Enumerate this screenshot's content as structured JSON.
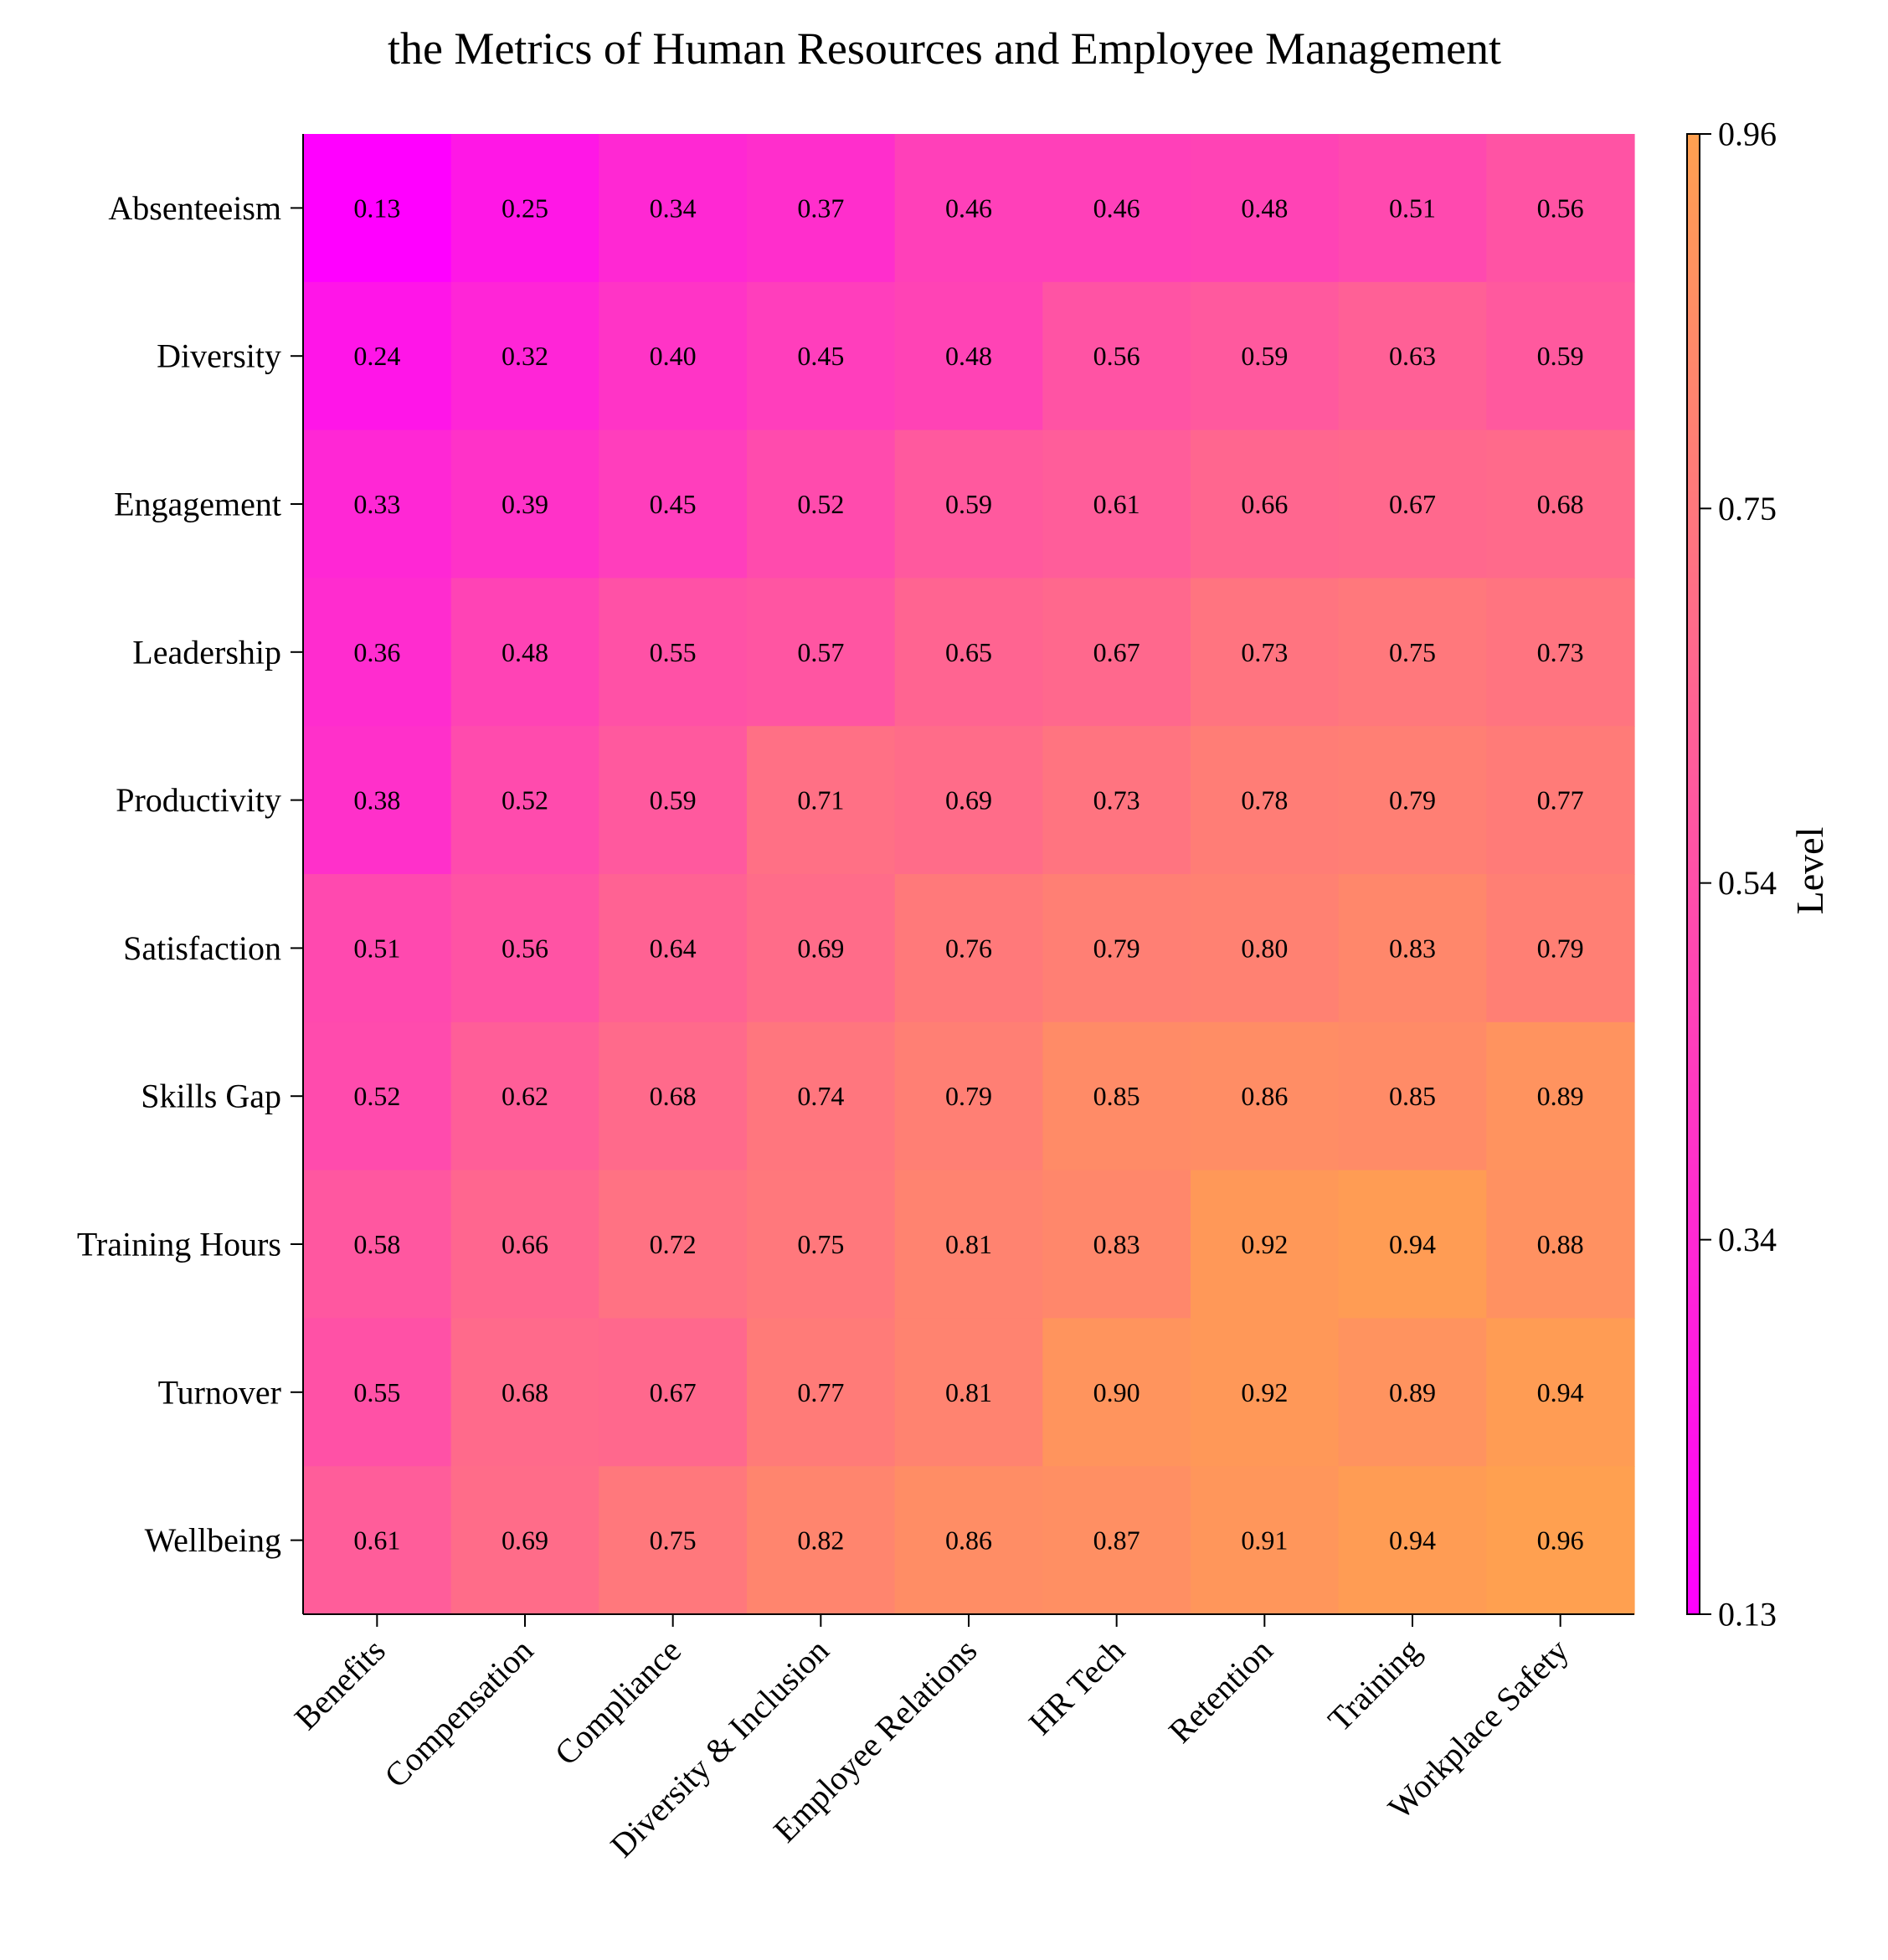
{
  "chart_data": {
    "type": "heatmap",
    "title": "the Metrics of Human Resources and Employee Management",
    "xlabel": "",
    "ylabel": "",
    "x_categories": [
      "Benefits",
      "Compensation",
      "Compliance",
      "Diversity & Inclusion",
      "Employee Relations",
      "HR Tech",
      "Retention",
      "Training",
      "Workplace Safety"
    ],
    "y_categories": [
      "Absenteeism",
      "Diversity",
      "Engagement",
      "Leadership",
      "Productivity",
      "Satisfaction",
      "Skills Gap",
      "Training Hours",
      "Turnover",
      "Wellbeing"
    ],
    "values": [
      [
        0.13,
        0.25,
        0.34,
        0.37,
        0.46,
        0.46,
        0.48,
        0.51,
        0.56
      ],
      [
        0.24,
        0.32,
        0.4,
        0.45,
        0.48,
        0.56,
        0.59,
        0.63,
        0.59
      ],
      [
        0.33,
        0.39,
        0.45,
        0.52,
        0.59,
        0.61,
        0.66,
        0.67,
        0.68
      ],
      [
        0.36,
        0.48,
        0.55,
        0.57,
        0.65,
        0.67,
        0.73,
        0.75,
        0.73
      ],
      [
        0.38,
        0.52,
        0.59,
        0.71,
        0.69,
        0.73,
        0.78,
        0.79,
        0.77
      ],
      [
        0.51,
        0.56,
        0.64,
        0.69,
        0.76,
        0.79,
        0.8,
        0.83,
        0.79
      ],
      [
        0.52,
        0.62,
        0.68,
        0.74,
        0.79,
        0.85,
        0.86,
        0.85,
        0.89
      ],
      [
        0.58,
        0.66,
        0.72,
        0.75,
        0.81,
        0.83,
        0.92,
        0.94,
        0.88
      ],
      [
        0.55,
        0.68,
        0.67,
        0.77,
        0.81,
        0.9,
        0.92,
        0.89,
        0.94
      ],
      [
        0.61,
        0.69,
        0.75,
        0.82,
        0.86,
        0.87,
        0.91,
        0.94,
        0.96
      ]
    ],
    "value_format": "0.00",
    "colorbar": {
      "label": "Level",
      "min": 0.13,
      "max": 0.96,
      "ticks": [
        "0.13",
        "0.34",
        "0.54",
        "0.75",
        "0.96"
      ],
      "colormap": "spring",
      "color_low": "#ff00ff",
      "color_high": "#ffa050"
    },
    "grid": false
  }
}
